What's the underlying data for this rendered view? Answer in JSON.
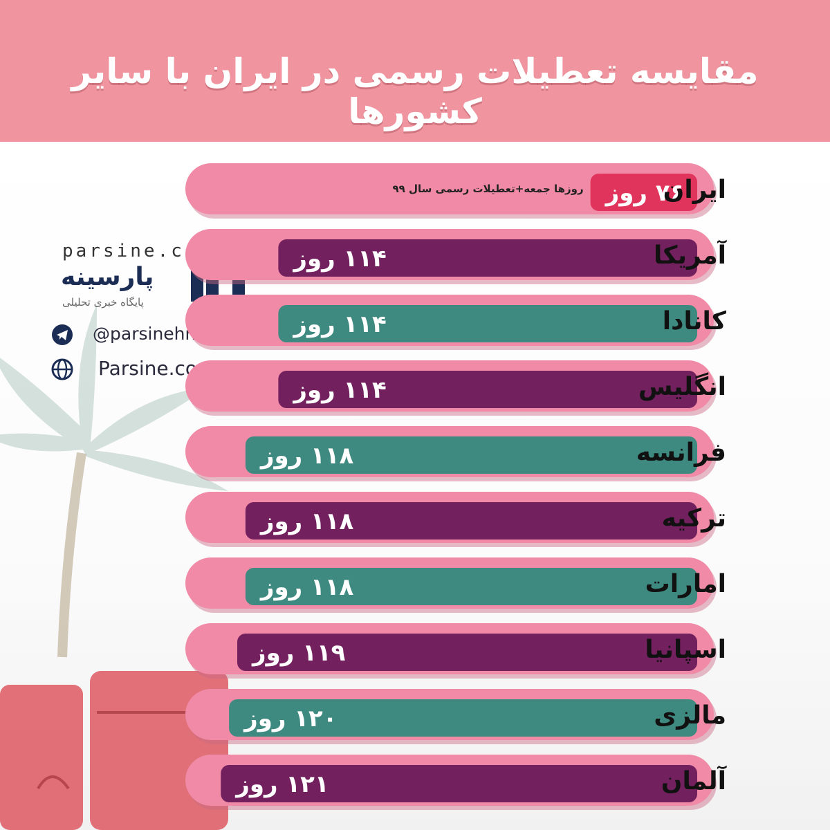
{
  "title": "مقایسه تعطیلات رسمی در ایران با سایر کشورها",
  "brand": {
    "domain": "parsine.com",
    "name": "پارسینه",
    "tagline": "پایگاه خبری تحلیلی",
    "telegram": "@parsinehnews",
    "website": "Parsine.com"
  },
  "colors": {
    "header": "#f0959f",
    "track": "#f08aa6",
    "iran_bar": "#e0345c",
    "purple": "#73205e",
    "teal": "#3e8a80",
    "text_on_bar": "#ffffff"
  },
  "chart_data": {
    "type": "bar",
    "orientation": "horizontal",
    "unit": "روز",
    "title": "مقایسه تعطیلات رسمی در ایران با سایر کشورها",
    "categories": [
      "ایران",
      "آمریکا",
      "کانادا",
      "انگلیس",
      "فرانسه",
      "ترکیه",
      "امارات",
      "اسپانیا",
      "مالزی",
      "آلمان"
    ],
    "values": [
      76,
      114,
      114,
      114,
      118,
      118,
      118,
      119,
      120,
      121
    ],
    "value_labels": [
      "۷۶ روز",
      "۱۱۴ روز",
      "۱۱۴ روز",
      "۱۱۴ روز",
      "۱۱۸ روز",
      "۱۱۸ روز",
      "۱۱۸ روز",
      "۱۱۹ روز",
      "۱۲۰ روز",
      "۱۲۱ روز"
    ],
    "bar_colors": [
      "#e0345c",
      "#73205e",
      "#3e8a80",
      "#73205e",
      "#3e8a80",
      "#73205e",
      "#3e8a80",
      "#73205e",
      "#3e8a80",
      "#73205e"
    ],
    "annotations": [
      {
        "category": "ایران",
        "text": "روزها جمعه+تعطیلات رسمی سال ۹۹"
      }
    ],
    "grid": false,
    "legend": "none",
    "direction": "right-to-left"
  }
}
